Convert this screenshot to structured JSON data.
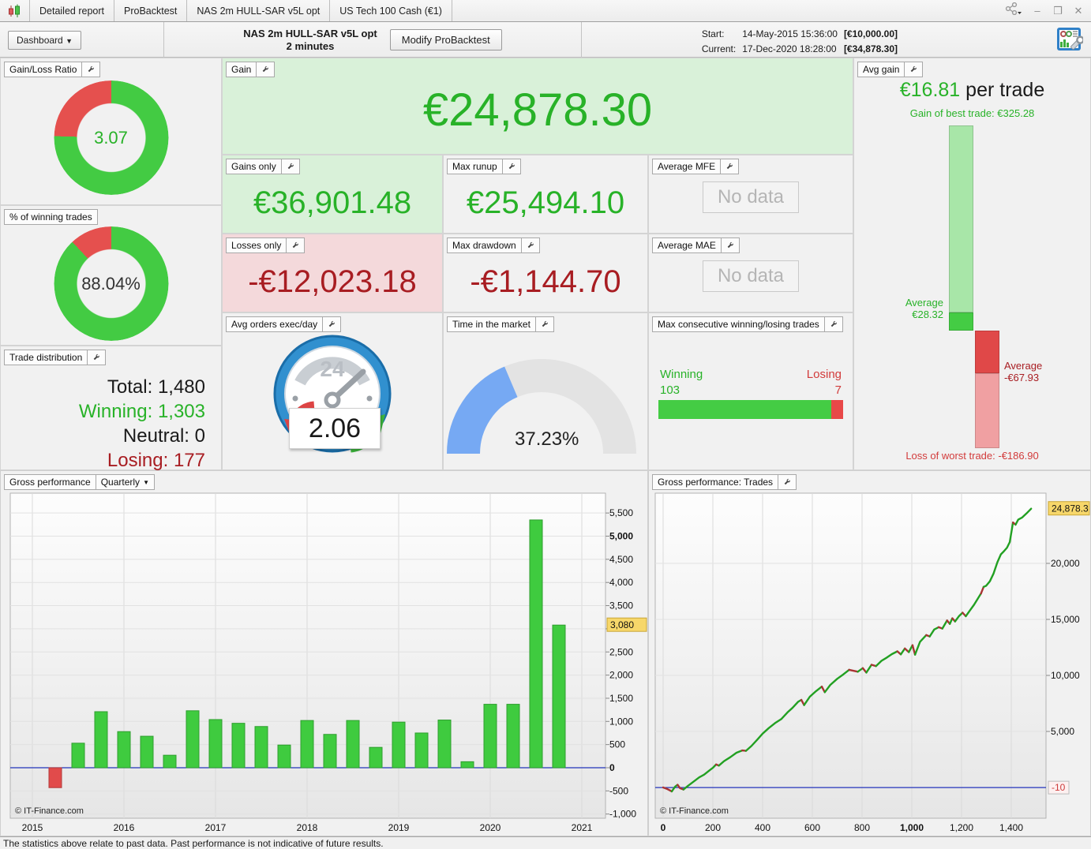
{
  "colors": {
    "green": "#43cb43",
    "red": "#e5504e",
    "text_green": "#28b228",
    "text_red": "#a81d22",
    "gauge_blue": "#76a9f3",
    "zero_line": "#2233bb",
    "bar_green": "#3fcb3f",
    "bar_red": "#e14b4b",
    "line_green": "#22a022",
    "line_red": "#aa3333",
    "highlight_yellow": "#f7d76a"
  },
  "tabs": {
    "items": [
      "Detailed report",
      "ProBacktest",
      "NAS 2m HULL-SAR v5L opt",
      "US Tech 100 Cash (€1)"
    ]
  },
  "window_controls": {
    "minimize": "–",
    "maximize": "❒",
    "close": "✕"
  },
  "header": {
    "dashboard_label": "Dashboard",
    "title_line1": "NAS 2m HULL-SAR v5L opt",
    "title_line2": "2 minutes",
    "modify_label": "Modify ProBacktest",
    "start_label": "Start:",
    "start_time": "14-May-2015 15:36:00",
    "start_amount": "[€10,000.00]",
    "current_label": "Current:",
    "current_time": "17-Dec-2020 18:28:00",
    "current_amount": "[€34,878.30]"
  },
  "panels": {
    "gain_loss_ratio": {
      "label": "Gain/Loss Ratio",
      "value": "3.07",
      "green_pct": 75.43
    },
    "winning_pct": {
      "label": "% of winning trades",
      "value": "88.04%",
      "green_pct": 88.04
    },
    "trade_distribution": {
      "label": "Trade distribution",
      "rows": [
        {
          "k": "Total:",
          "v": "1,480"
        },
        {
          "k": "Winning:",
          "v": "1,303"
        },
        {
          "k": "Neutral:",
          "v": "0"
        },
        {
          "k": "Losing:",
          "v": "177"
        }
      ]
    },
    "gain": {
      "label": "Gain",
      "value": "€24,878.30"
    },
    "gains_only": {
      "label": "Gains only",
      "value": "€36,901.48"
    },
    "max_runup": {
      "label": "Max runup",
      "value": "€25,494.10"
    },
    "losses_only": {
      "label": "Losses only",
      "value": "-€12,023.18"
    },
    "max_drawdown": {
      "label": "Max drawdown",
      "value": "-€1,144.70"
    },
    "average_mfe": {
      "label": "Average MFE",
      "no_data": "No data"
    },
    "average_mae": {
      "label": "Average MAE",
      "no_data": "No data"
    },
    "avg_orders": {
      "label": "Avg orders exec/day",
      "value": "2.06",
      "clock_text": "24"
    },
    "time_in_market": {
      "label": "Time in the market",
      "value": "37.23%",
      "pct": 37.23
    },
    "max_consecutive": {
      "label": "Max consecutive winning/losing trades",
      "winning_label": "Winning",
      "winning_value": "103",
      "losing_label": "Losing",
      "losing_value": "7",
      "winning": 103,
      "losing": 7
    },
    "avg_gain": {
      "label": "Avg gain",
      "value": "€16.81",
      "suffix": " per trade",
      "best_caption": "Gain of best trade: €325.28",
      "avg_gain_line1": "Average",
      "avg_gain_line2": "€28.32",
      "avg_loss_line1": "Average",
      "avg_loss_line2": "-€67.93",
      "worst_caption": "Loss of worst trade: -€186.90",
      "scale": {
        "best": 325.28,
        "avg_gain": 28.32,
        "avg_loss": -67.93,
        "worst": -186.9
      }
    }
  },
  "chart_data": [
    {
      "id": "quarterly",
      "type": "bar",
      "title": "Gross performance",
      "period": "Quarterly",
      "categories": [
        "2015-Q2",
        "2015-Q3",
        "2015-Q4",
        "2016-Q1",
        "2016-Q2",
        "2016-Q3",
        "2016-Q4",
        "2017-Q1",
        "2017-Q2",
        "2017-Q3",
        "2017-Q4",
        "2018-Q1",
        "2018-Q2",
        "2018-Q3",
        "2018-Q4",
        "2019-Q1",
        "2019-Q2",
        "2019-Q3",
        "2019-Q4",
        "2020-Q1",
        "2020-Q2",
        "2020-Q3",
        "2020-Q4"
      ],
      "values": [
        -430,
        530,
        1210,
        780,
        680,
        270,
        1230,
        1040,
        960,
        890,
        490,
        1020,
        720,
        1020,
        440,
        985,
        750,
        1030,
        130,
        1370,
        1370,
        5350,
        3080
      ],
      "x_tick_labels": [
        "2015",
        "2016",
        "2017",
        "2018",
        "2019",
        "2020",
        "2021"
      ],
      "y_tick_min": -1000,
      "y_tick_max": 5500,
      "y_tick_step": 500,
      "skip_tick": 3000,
      "bold_ticks": [
        0,
        5000
      ],
      "current_value": 3080,
      "current_value_label": "3,080",
      "ylim": [
        -1175,
        5930
      ],
      "grid": true,
      "legend": "none",
      "copyright": "© IT-Finance.com"
    },
    {
      "id": "trades",
      "type": "line",
      "title": "Gross performance: Trades",
      "xlabel": "Trades",
      "x_ticks": [
        0,
        200,
        400,
        600,
        800,
        1000,
        1200,
        1400
      ],
      "bold_x_ticks": [
        0,
        1000
      ],
      "y_ticks": [
        5000,
        10000,
        15000,
        20000
      ],
      "current_value": 24878.3,
      "current_value_label": "24,878.3",
      "zero_line_value": -10,
      "zero_label": "-10",
      "xlim": [
        0,
        1560
      ],
      "ylim": [
        -2700,
        26300
      ],
      "grid": true,
      "legend": "none",
      "copyright": "© IT-Finance.com",
      "points": [
        [
          0,
          0,
          "g"
        ],
        [
          15,
          -120,
          "r"
        ],
        [
          35,
          -350,
          "r"
        ],
        [
          48,
          60,
          "g"
        ],
        [
          58,
          240,
          "g"
        ],
        [
          68,
          -60,
          "r"
        ],
        [
          82,
          -180,
          "r"
        ],
        [
          100,
          150,
          "g"
        ],
        [
          120,
          480,
          "g"
        ],
        [
          145,
          900,
          "g"
        ],
        [
          165,
          1150,
          "g"
        ],
        [
          185,
          1500,
          "g"
        ],
        [
          200,
          1750,
          "g"
        ],
        [
          213,
          2050,
          "g"
        ],
        [
          224,
          1950,
          "r"
        ],
        [
          245,
          2350,
          "g"
        ],
        [
          270,
          2700,
          "g"
        ],
        [
          295,
          3100,
          "g"
        ],
        [
          318,
          3300,
          "g"
        ],
        [
          333,
          3270,
          "r"
        ],
        [
          355,
          3700,
          "g"
        ],
        [
          380,
          4300,
          "g"
        ],
        [
          400,
          4800,
          "g"
        ],
        [
          425,
          5300,
          "g"
        ],
        [
          450,
          5750,
          "g"
        ],
        [
          475,
          6100,
          "g"
        ],
        [
          500,
          6700,
          "g"
        ],
        [
          520,
          7100,
          "g"
        ],
        [
          543,
          7650,
          "g"
        ],
        [
          556,
          7820,
          "g"
        ],
        [
          567,
          7350,
          "r"
        ],
        [
          590,
          8100,
          "g"
        ],
        [
          615,
          8600,
          "g"
        ],
        [
          638,
          9000,
          "g"
        ],
        [
          650,
          8500,
          "r"
        ],
        [
          672,
          9150,
          "g"
        ],
        [
          700,
          9700,
          "g"
        ],
        [
          725,
          10100,
          "g"
        ],
        [
          748,
          10500,
          "g"
        ],
        [
          763,
          10430,
          "r"
        ],
        [
          783,
          10330,
          "r"
        ],
        [
          803,
          10650,
          "g"
        ],
        [
          817,
          10250,
          "r"
        ],
        [
          838,
          10950,
          "g"
        ],
        [
          856,
          10830,
          "r"
        ],
        [
          878,
          11300,
          "g"
        ],
        [
          900,
          11600,
          "g"
        ],
        [
          920,
          11900,
          "g"
        ],
        [
          942,
          12150,
          "g"
        ],
        [
          956,
          11880,
          "r"
        ],
        [
          972,
          12400,
          "g"
        ],
        [
          988,
          12080,
          "r"
        ],
        [
          1003,
          12700,
          "g"
        ],
        [
          1013,
          11850,
          "r"
        ],
        [
          1033,
          13000,
          "g"
        ],
        [
          1058,
          13600,
          "g"
        ],
        [
          1072,
          13480,
          "r"
        ],
        [
          1090,
          14100,
          "g"
        ],
        [
          1108,
          14300,
          "g"
        ],
        [
          1123,
          14180,
          "r"
        ],
        [
          1142,
          14900,
          "g"
        ],
        [
          1153,
          14600,
          "r"
        ],
        [
          1163,
          15100,
          "g"
        ],
        [
          1174,
          14820,
          "r"
        ],
        [
          1190,
          15300,
          "g"
        ],
        [
          1204,
          15600,
          "g"
        ],
        [
          1217,
          15280,
          "r"
        ],
        [
          1234,
          15800,
          "g"
        ],
        [
          1250,
          16300,
          "g"
        ],
        [
          1264,
          16800,
          "g"
        ],
        [
          1278,
          17300,
          "g"
        ],
        [
          1289,
          17900,
          "r"
        ],
        [
          1299,
          18000,
          "g"
        ],
        [
          1314,
          18400,
          "g"
        ],
        [
          1329,
          19100,
          "g"
        ],
        [
          1344,
          20100,
          "g"
        ],
        [
          1358,
          20800,
          "g"
        ],
        [
          1371,
          21100,
          "g"
        ],
        [
          1383,
          21400,
          "g"
        ],
        [
          1394,
          21900,
          "g"
        ],
        [
          1407,
          23650,
          "g"
        ],
        [
          1417,
          23450,
          "r"
        ],
        [
          1428,
          23900,
          "g"
        ],
        [
          1444,
          24100,
          "g"
        ],
        [
          1461,
          24450,
          "g"
        ],
        [
          1480,
          24878.3,
          "g"
        ]
      ]
    }
  ],
  "footer": {
    "disclaimer": "The statistics above relate to past data. Past performance is not indicative of future results."
  }
}
